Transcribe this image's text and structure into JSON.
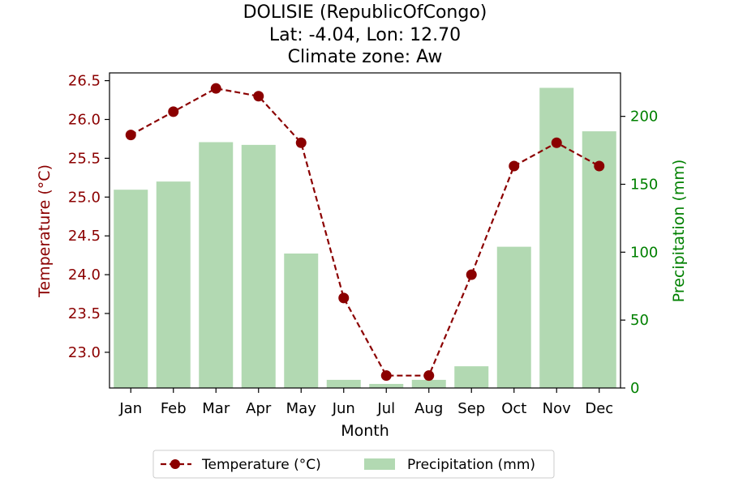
{
  "chart_data": {
    "type": "bar+line",
    "title_lines": [
      "DOLISIE (RepublicOfCongo)",
      "Lat: -4.04, Lon: 12.70",
      "Climate zone: Aw"
    ],
    "categories": [
      "Jan",
      "Feb",
      "Mar",
      "Apr",
      "May",
      "Jun",
      "Jul",
      "Aug",
      "Sep",
      "Oct",
      "Nov",
      "Dec"
    ],
    "xlabel": "Month",
    "ylabel_left": "Temperature (°C)",
    "ylabel_right": "Precipitation (mm)",
    "ylim_left": [
      22.54,
      26.6
    ],
    "ylim_right": [
      0,
      232
    ],
    "yticks_left": [
      "23.0",
      "23.5",
      "24.0",
      "24.5",
      "25.0",
      "25.5",
      "26.0",
      "26.5"
    ],
    "yticks_right": [
      "0",
      "50",
      "100",
      "150",
      "200"
    ],
    "series": [
      {
        "name": "Temperature (°C)",
        "kind": "line",
        "axis": "left",
        "color": "#8b0000",
        "values": [
          25.8,
          26.1,
          26.4,
          26.3,
          25.7,
          23.7,
          22.7,
          22.7,
          24.0,
          25.4,
          25.7,
          25.4
        ]
      },
      {
        "name": "Precipitation (mm)",
        "kind": "bar",
        "axis": "right",
        "color": "#b2d9b2",
        "values": [
          146,
          152,
          181,
          179,
          99,
          6,
          3,
          6,
          16,
          104,
          221,
          189
        ]
      }
    ],
    "legend_position": "bottom-center",
    "grid": false
  }
}
